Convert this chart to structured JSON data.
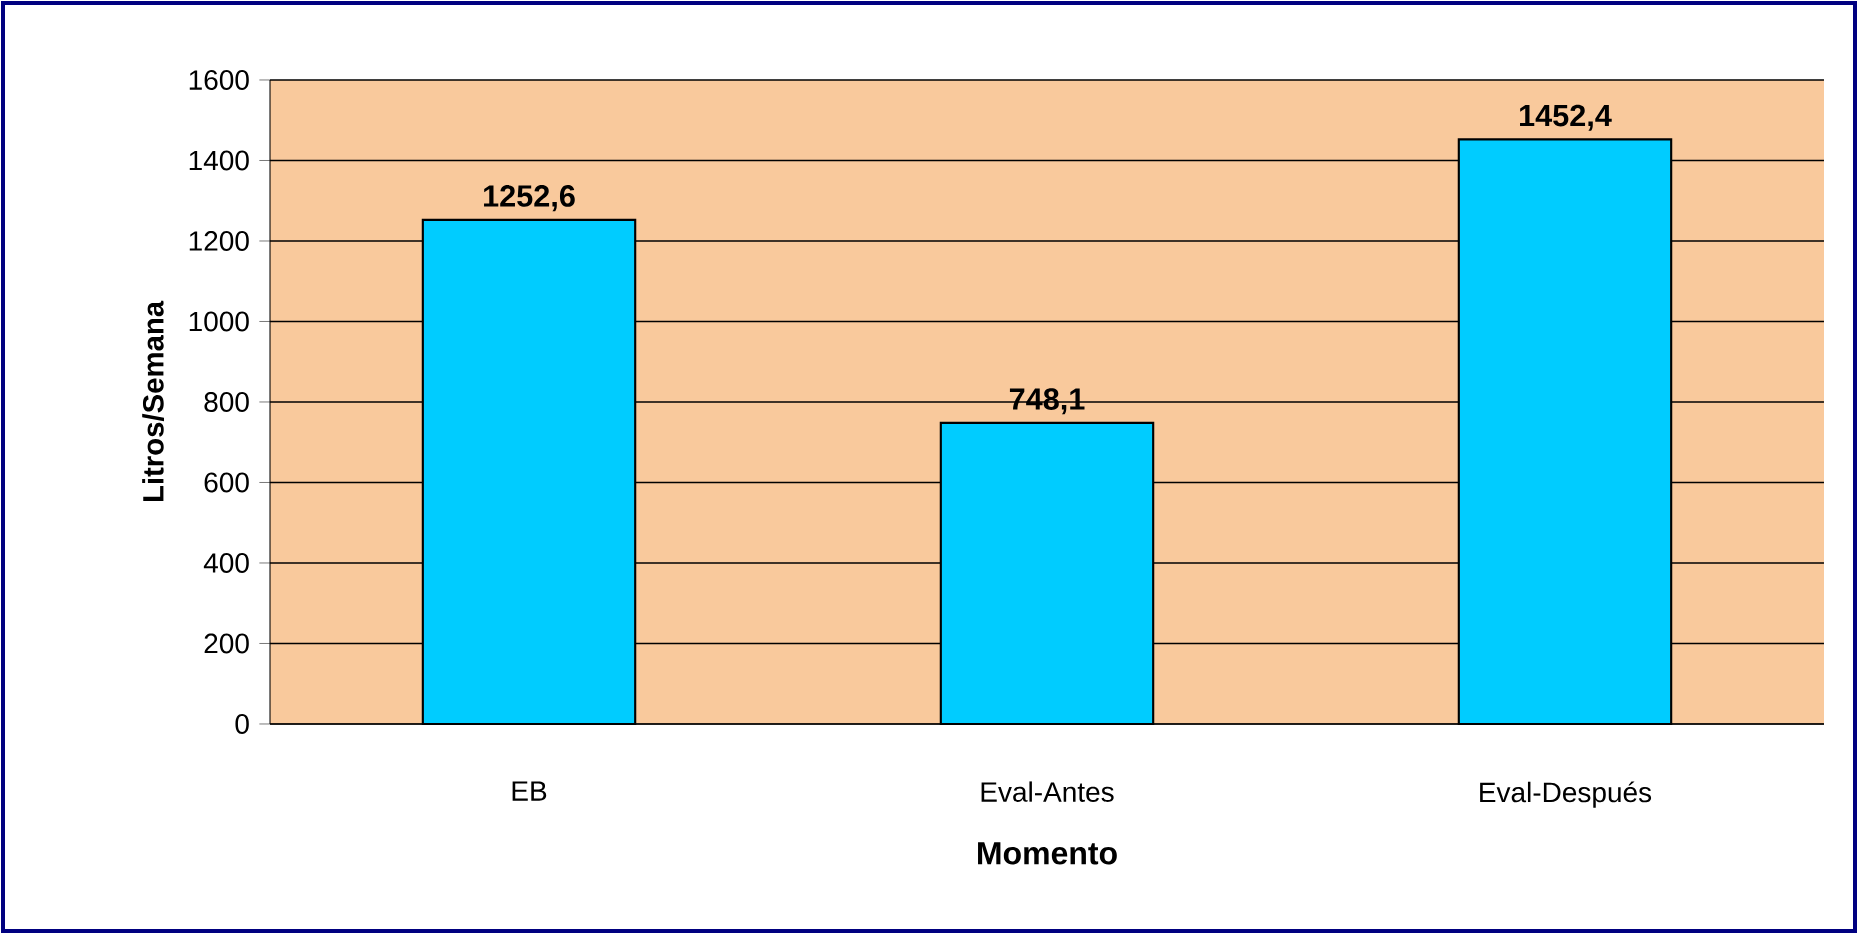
{
  "chart_data": {
    "type": "bar",
    "xlabel": "Momento",
    "ylabel": "Litros/Semana",
    "categories": [
      "EB",
      "Eval-Antes",
      "Eval-Después"
    ],
    "values": [
      1252.6,
      748.1,
      1452.4
    ],
    "value_labels": [
      "1252,6",
      "748,1",
      "1452,4"
    ],
    "color": "#00ccff",
    "ylim": [
      0,
      1600
    ],
    "yticks": [
      0,
      200,
      400,
      600,
      800,
      1000,
      1200,
      1400,
      1600
    ],
    "grid": "y"
  }
}
